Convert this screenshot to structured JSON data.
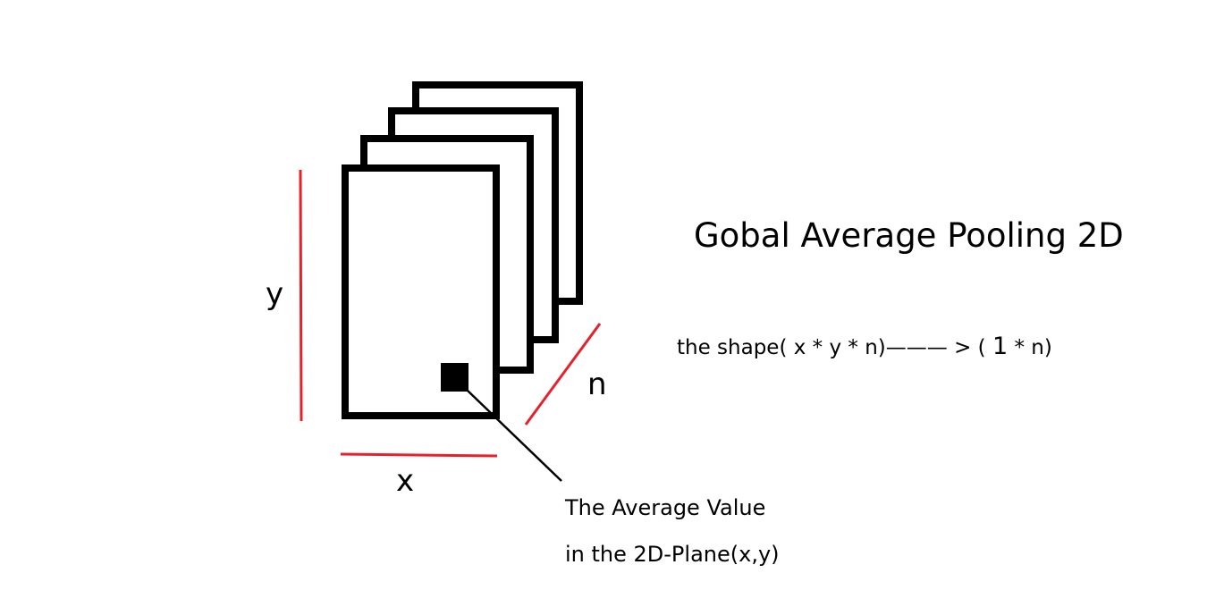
{
  "title": "Gobal Average Pooling 2D",
  "formula": {
    "prefix": "the shape( x * y * n)——— > ( ",
    "one": "1",
    "suffix": " * n)"
  },
  "callout": {
    "line1": "The Average Value",
    "line2": "in the 2D-Plane(x,y)"
  },
  "axes": {
    "x": "x",
    "y": "y",
    "n": "n"
  },
  "colors": {
    "frame": "#000000",
    "dimension_line": "#e8202a",
    "background": "#ffffff"
  },
  "feature_map_count": 4
}
